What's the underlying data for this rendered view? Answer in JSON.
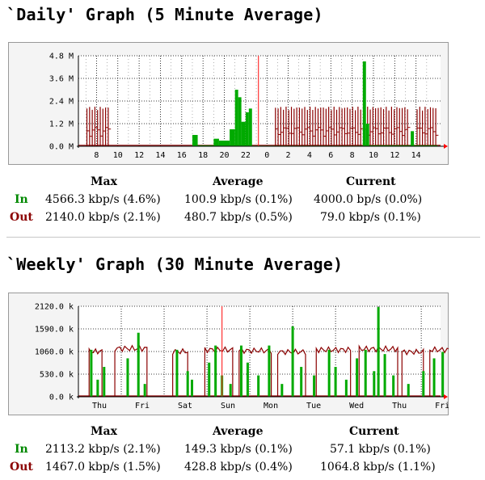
{
  "sections": [
    {
      "title": "`Daily' Graph (5 Minute Average)",
      "stats": {
        "headers": {
          "max": "Max",
          "average": "Average",
          "current": "Current"
        },
        "in": {
          "label": "In",
          "max": "4566.3 kbp/s (4.6%)",
          "average": "100.9 kbp/s (0.1%)",
          "current": "4000.0 bp/s (0.0%)"
        },
        "out": {
          "label": "Out",
          "max": "2140.0 kbp/s (2.1%)",
          "average": "480.7 kbp/s (0.5%)",
          "current": "79.0 kbp/s (0.1%)"
        }
      }
    },
    {
      "title": "`Weekly' Graph (30 Minute Average)",
      "stats": {
        "headers": {
          "max": "Max",
          "average": "Average",
          "current": "Current"
        },
        "in": {
          "label": "In",
          "max": "2113.2 kbp/s (2.1%)",
          "average": "149.3 kbp/s (0.1%)",
          "current": "57.1 kbp/s (0.1%)"
        },
        "out": {
          "label": "Out",
          "max": "1467.0 kbp/s (1.5%)",
          "average": "428.8 kbp/s (0.4%)",
          "current": "1064.8 kbp/s (1.1%)"
        }
      }
    }
  ],
  "colors": {
    "in": "#00aa00",
    "out": "#8b0000",
    "marker": "#ff3333",
    "grid": "#000000",
    "background": "#f4f4f4"
  },
  "chart_data": [
    {
      "type": "area",
      "y_unit": "Mb/s",
      "yticks": [
        "4.8 M",
        "3.6 M",
        "2.4 M",
        "1.2 M",
        "0.0 M"
      ],
      "ylim": [
        0,
        4.8
      ],
      "xticks": [
        "8",
        "10",
        "12",
        "14",
        "16",
        "18",
        "20",
        "22",
        "0",
        "2",
        "4",
        "6",
        "8",
        "10",
        "12",
        "14"
      ],
      "grid": true,
      "series": [
        {
          "name": "In",
          "key": "in",
          "segments": [
            {
              "from": 7.0,
              "to": 17.0,
              "level": 0.02
            },
            {
              "from": 17.0,
              "to": 17.5,
              "level": 0.6
            },
            {
              "from": 17.5,
              "to": 19.0,
              "level": 0.05
            },
            {
              "from": 19.0,
              "to": 19.5,
              "level": 0.4
            },
            {
              "from": 19.5,
              "to": 20.5,
              "level": 0.3
            },
            {
              "from": 20.5,
              "to": 21.0,
              "level": 0.9
            },
            {
              "from": 21.0,
              "to": 21.3,
              "level": 3.0
            },
            {
              "from": 21.3,
              "to": 21.6,
              "level": 2.6
            },
            {
              "from": 21.6,
              "to": 22.0,
              "level": 1.3
            },
            {
              "from": 22.0,
              "to": 22.3,
              "level": 1.8
            },
            {
              "from": 22.3,
              "to": 22.6,
              "level": 2.0
            },
            {
              "from": 22.6,
              "to": 33.0,
              "level": 0.03
            },
            {
              "from": 33.0,
              "to": 33.3,
              "level": 4.5
            },
            {
              "from": 33.3,
              "to": 33.6,
              "level": 1.2
            },
            {
              "from": 33.6,
              "to": 37.5,
              "level": 0.05
            },
            {
              "from": 37.5,
              "to": 37.8,
              "level": 0.8
            },
            {
              "from": 37.8,
              "to": 40.0,
              "level": 0.05
            }
          ]
        },
        {
          "name": "Out",
          "key": "out",
          "bursts": [
            {
              "from": 7.1,
              "to": 9.1,
              "level": 2.1,
              "step": 0.25
            },
            {
              "from": 24.8,
              "to": 32.8,
              "level": 2.1,
              "step": 0.25
            },
            {
              "from": 33.2,
              "to": 37.2,
              "level": 2.1,
              "step": 0.25
            },
            {
              "from": 38.1,
              "to": 39.9,
              "level": 2.1,
              "step": 0.25
            }
          ],
          "base_level": 0.05
        }
      ],
      "marker_x": 23.2
    },
    {
      "type": "area",
      "y_unit": "kb/s",
      "yticks": [
        "2120.0 k",
        "1590.0 k",
        "1060.0 k",
        "530.0 k",
        "0.0 k"
      ],
      "ylim": [
        0,
        2120
      ],
      "xticks": [
        "Thu",
        "Fri",
        "Sat",
        "Sun",
        "Mon",
        "Tue",
        "Wed",
        "Thu",
        "Fri"
      ],
      "grid": true,
      "series": [
        {
          "name": "In",
          "key": "in",
          "spikes": [
            [
              0.3,
              1100
            ],
            [
              0.45,
              400
            ],
            [
              0.6,
              700
            ],
            [
              1.15,
              900
            ],
            [
              1.4,
              1500
            ],
            [
              1.55,
              300
            ],
            [
              2.3,
              1100
            ],
            [
              2.55,
              600
            ],
            [
              2.65,
              400
            ],
            [
              3.05,
              800
            ],
            [
              3.2,
              1200
            ],
            [
              3.35,
              500
            ],
            [
              3.55,
              300
            ],
            [
              3.8,
              1200
            ],
            [
              3.95,
              800
            ],
            [
              4.2,
              500
            ],
            [
              4.45,
              1200
            ],
            [
              4.75,
              300
            ],
            [
              5.0,
              1650
            ],
            [
              5.2,
              700
            ],
            [
              5.5,
              500
            ],
            [
              5.85,
              1100
            ],
            [
              6.0,
              700
            ],
            [
              6.25,
              400
            ],
            [
              6.5,
              900
            ],
            [
              6.7,
              1100
            ],
            [
              6.9,
              600
            ],
            [
              7.0,
              2100
            ],
            [
              7.15,
              1000
            ],
            [
              7.35,
              500
            ],
            [
              7.7,
              300
            ],
            [
              8.05,
              600
            ],
            [
              8.3,
              900
            ],
            [
              8.5,
              1050
            ],
            [
              8.7,
              500
            ]
          ]
        },
        {
          "name": "Out",
          "key": "out",
          "plateaus": [
            {
              "from": 0.25,
              "to": 0.55,
              "level": 1060
            },
            {
              "from": 0.85,
              "to": 1.6,
              "level": 1130
            },
            {
              "from": 2.2,
              "to": 2.55,
              "level": 1060
            },
            {
              "from": 2.95,
              "to": 3.6,
              "level": 1100
            },
            {
              "from": 3.75,
              "to": 4.5,
              "level": 1080
            },
            {
              "from": 4.65,
              "to": 5.3,
              "level": 1050
            },
            {
              "from": 5.55,
              "to": 6.35,
              "level": 1100
            },
            {
              "from": 6.55,
              "to": 7.45,
              "level": 1120
            },
            {
              "from": 7.55,
              "to": 8.05,
              "level": 1050
            },
            {
              "from": 8.2,
              "to": 8.95,
              "level": 1100
            }
          ],
          "base_level": 20
        },
        {
          "name": "",
          "key": "marker",
          "spikes": [
            [
              3.35,
              2120
            ]
          ]
        }
      ]
    }
  ]
}
